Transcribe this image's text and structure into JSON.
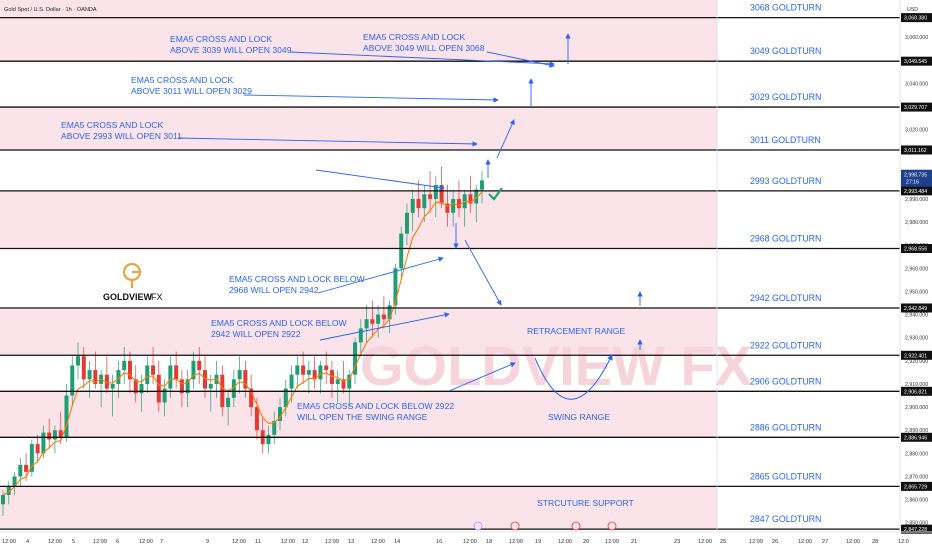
{
  "header": {
    "title": "Gold Spot / U.S. Dollar · 1h · OANDA",
    "currency": "USD"
  },
  "logo": {
    "brand": "GOLDVIEW",
    "suffix": "FX",
    "initial": "G"
  },
  "watermark": "GOLDVIEW FX",
  "colors": {
    "zone": "#fbe3ea",
    "line": "#111111",
    "text": "#2962ff",
    "bull": "#1f9e74",
    "bear": "#e53935",
    "ema": "#ff7b00",
    "check": "#1aa37a",
    "pill_current": "#1e3f8c"
  },
  "chart_data": {
    "type": "candlestick",
    "symbol": "XAUUSD",
    "timeframe": "1h",
    "ylim": [
      2846,
      3076
    ],
    "y_ticks": [
      2850,
      2860,
      2870,
      2880,
      2890,
      2900,
      2910,
      2920,
      2930,
      2940,
      2950,
      2960,
      2970,
      2980,
      2990,
      3000,
      3010,
      3020,
      3030,
      3040,
      3050,
      3060
    ],
    "x_ticks": [
      "12:00",
      "4",
      "12:00",
      "5",
      "12:00",
      "6",
      "12:00",
      "7",
      "9",
      "12:00",
      "11",
      "12:00",
      "12",
      "12:00",
      "13",
      "12:00",
      "14",
      "16",
      "12:00",
      "18",
      "12:00",
      "19",
      "12:00",
      "20",
      "12:00",
      "21",
      "23",
      "12:00",
      "25",
      "12:00",
      "26",
      "12:00",
      "27",
      "12:00",
      "28",
      "12:0"
    ],
    "price_levels": [
      {
        "value": 3068.38,
        "label": "3068 GOLDTURN",
        "tag": "3,068.380"
      },
      {
        "value": 3049.545,
        "label": "3049 GOLDTURN",
        "tag": "3,049.545"
      },
      {
        "value": 3029.707,
        "label": "3029 GOLDTURN",
        "tag": "3,029.707"
      },
      {
        "value": 3011.162,
        "label": "3011 GOLDTURN",
        "tag": "3,011.162"
      },
      {
        "value": 2993.484,
        "label": "2993 GOLDTURN",
        "tag": "2,993.484"
      },
      {
        "value": 2968.556,
        "label": "2968 GOLDTURN",
        "tag": "2,968.556"
      },
      {
        "value": 2942.849,
        "label": "2942 GOLDTURN",
        "tag": "2,942.849"
      },
      {
        "value": 2922.401,
        "label": "2922 GOLDTURN",
        "tag": "2,922.401"
      },
      {
        "value": 2906.821,
        "label": "2906 GOLDTURN",
        "tag": "2,906.821"
      },
      {
        "value": 2886.946,
        "label": "2886 GOLDTURN",
        "tag": "2,886.946"
      },
      {
        "value": 2865.729,
        "label": "2865 GOLDTURN",
        "tag": "2,865.729"
      },
      {
        "value": 2847.228,
        "label": "2847 GOLDTURN",
        "tag": "2,847.228"
      }
    ],
    "current_price": {
      "value": 2998.735,
      "tag": "2,998.735",
      "countdown": "27:16"
    },
    "annotations": [
      {
        "lines": [
          "EMA5 CROSS AND LOCK",
          "ABOVE 3039 WILL OPEN 3049"
        ]
      },
      {
        "lines": [
          "EMA5 CROSS AND LOCK",
          "ABOVE 3049 WILL OPEN 3068"
        ]
      },
      {
        "lines": [
          "EMA5 CROSS AND LOCK",
          "ABOVE 3011 WILL OPEN 3029"
        ]
      },
      {
        "lines": [
          "EMA5 CROSS AND LOCK",
          "ABOVE 2993 WILL OPEN 3011"
        ]
      },
      {
        "lines": [
          "EMA5 CROSS AND LOCK BELOW",
          "2968 WILL OPEN 2942"
        ]
      },
      {
        "lines": [
          "EMA5 CROSS AND LOCK BELOW",
          "2942 WILL OPEN 2922"
        ]
      },
      {
        "lines": [
          "EMA5 CROSS AND LOCK BELOW 2922",
          "WILL OPEN THE SWING RANGE"
        ]
      }
    ],
    "zone_labels": [
      "RETRACEMENT RANGE",
      "SWING RANGE",
      "STRCUTURE SUPPORT"
    ],
    "candles": [
      [
        2858,
        2864,
        2853,
        2862
      ],
      [
        2862,
        2868,
        2858,
        2866
      ],
      [
        2866,
        2872,
        2862,
        2870
      ],
      [
        2870,
        2878,
        2866,
        2875
      ],
      [
        2875,
        2880,
        2868,
        2872
      ],
      [
        2872,
        2886,
        2870,
        2884
      ],
      [
        2884,
        2888,
        2876,
        2880
      ],
      [
        2880,
        2892,
        2878,
        2889
      ],
      [
        2889,
        2895,
        2882,
        2886
      ],
      [
        2886,
        2892,
        2880,
        2890
      ],
      [
        2890,
        2898,
        2884,
        2887
      ],
      [
        2887,
        2910,
        2885,
        2905
      ],
      [
        2905,
        2922,
        2900,
        2918
      ],
      [
        2918,
        2928,
        2912,
        2922
      ],
      [
        2922,
        2926,
        2908,
        2912
      ],
      [
        2912,
        2920,
        2904,
        2916
      ],
      [
        2916,
        2924,
        2908,
        2910
      ],
      [
        2910,
        2916,
        2900,
        2914
      ],
      [
        2914,
        2922,
        2906,
        2908
      ],
      [
        2908,
        2914,
        2896,
        2910
      ],
      [
        2910,
        2920,
        2904,
        2916
      ],
      [
        2916,
        2926,
        2910,
        2920
      ],
      [
        2920,
        2924,
        2906,
        2912
      ],
      [
        2912,
        2918,
        2902,
        2906
      ],
      [
        2906,
        2914,
        2898,
        2910
      ],
      [
        2910,
        2922,
        2906,
        2918
      ],
      [
        2918,
        2926,
        2910,
        2914
      ],
      [
        2914,
        2920,
        2898,
        2902
      ],
      [
        2902,
        2912,
        2896,
        2908
      ],
      [
        2908,
        2922,
        2904,
        2918
      ],
      [
        2918,
        2924,
        2908,
        2912
      ],
      [
        2912,
        2916,
        2900,
        2906
      ],
      [
        2906,
        2916,
        2900,
        2912
      ],
      [
        2912,
        2924,
        2908,
        2920
      ],
      [
        2920,
        2926,
        2910,
        2916
      ],
      [
        2916,
        2922,
        2904,
        2908
      ],
      [
        2908,
        2914,
        2898,
        2910
      ],
      [
        2910,
        2920,
        2904,
        2914
      ],
      [
        2914,
        2918,
        2896,
        2900
      ],
      [
        2900,
        2908,
        2892,
        2904
      ],
      [
        2904,
        2916,
        2900,
        2912
      ],
      [
        2912,
        2922,
        2906,
        2916
      ],
      [
        2916,
        2920,
        2904,
        2908
      ],
      [
        2908,
        2914,
        2896,
        2900
      ],
      [
        2900,
        2904,
        2886,
        2890
      ],
      [
        2890,
        2896,
        2880,
        2884
      ],
      [
        2884,
        2892,
        2880,
        2888
      ],
      [
        2888,
        2898,
        2884,
        2894
      ],
      [
        2894,
        2904,
        2890,
        2900
      ],
      [
        2900,
        2912,
        2896,
        2908
      ],
      [
        2908,
        2918,
        2902,
        2914
      ],
      [
        2914,
        2922,
        2908,
        2918
      ],
      [
        2918,
        2924,
        2910,
        2914
      ],
      [
        2914,
        2920,
        2906,
        2916
      ],
      [
        2916,
        2922,
        2908,
        2912
      ],
      [
        2912,
        2920,
        2906,
        2918
      ],
      [
        2918,
        2924,
        2910,
        2916
      ],
      [
        2916,
        2920,
        2904,
        2910
      ],
      [
        2910,
        2916,
        2902,
        2912
      ],
      [
        2912,
        2920,
        2906,
        2908
      ],
      [
        2908,
        2916,
        2900,
        2914
      ],
      [
        2914,
        2930,
        2910,
        2928
      ],
      [
        2928,
        2938,
        2922,
        2934
      ],
      [
        2934,
        2944,
        2928,
        2938
      ],
      [
        2938,
        2946,
        2930,
        2936
      ],
      [
        2936,
        2944,
        2930,
        2940
      ],
      [
        2940,
        2948,
        2934,
        2938
      ],
      [
        2938,
        2946,
        2932,
        2944
      ],
      [
        2944,
        2962,
        2940,
        2960
      ],
      [
        2960,
        2978,
        2956,
        2975
      ],
      [
        2975,
        2988,
        2970,
        2984
      ],
      [
        2984,
        2994,
        2976,
        2990
      ],
      [
        2990,
        2998,
        2982,
        2986
      ],
      [
        2986,
        2996,
        2980,
        2992
      ],
      [
        2992,
        3002,
        2984,
        2990
      ],
      [
        2990,
        3000,
        2982,
        2996
      ],
      [
        2996,
        3004,
        2986,
        2988
      ],
      [
        2988,
        2996,
        2978,
        2984
      ],
      [
        2984,
        2994,
        2978,
        2990
      ],
      [
        2990,
        2998,
        2982,
        2986
      ],
      [
        2986,
        2994,
        2978,
        2992
      ],
      [
        2992,
        3000,
        2984,
        2988
      ],
      [
        2988,
        2996,
        2980,
        2994
      ],
      [
        2994,
        3002,
        2988,
        2998
      ]
    ]
  }
}
